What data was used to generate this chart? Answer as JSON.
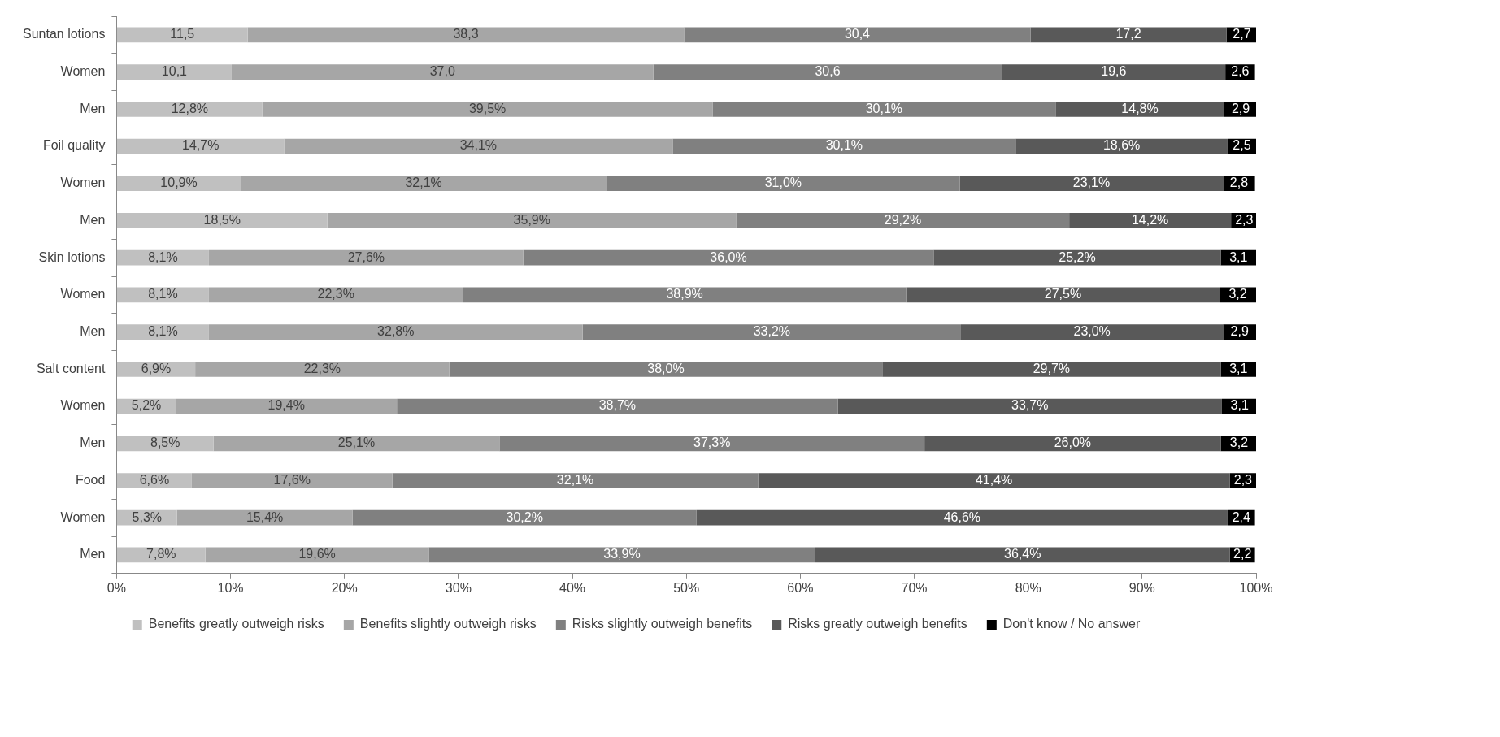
{
  "chart_data": {
    "type": "bar",
    "orientation": "horizontal",
    "stacked": true,
    "legend": "bottom",
    "grid": false,
    "categories": [
      "Suntan lotions",
      "Women",
      "Men",
      "Foil quality",
      "Women",
      "Men",
      "Skin lotions",
      "Women",
      "Men",
      "Salt content",
      "Women",
      "Men",
      "Food",
      "Women",
      "Men"
    ],
    "xlim": [
      0,
      100
    ],
    "xticks": [
      {
        "value": 0,
        "label": "0%"
      },
      {
        "value": 10,
        "label": "10%"
      },
      {
        "value": 20,
        "label": "20%"
      },
      {
        "value": 30,
        "label": "30%"
      },
      {
        "value": 40,
        "label": "40%"
      },
      {
        "value": 50,
        "label": "50%"
      },
      {
        "value": 60,
        "label": "60%"
      },
      {
        "value": 70,
        "label": "70%"
      },
      {
        "value": 80,
        "label": "80%"
      },
      {
        "value": 90,
        "label": "90%"
      },
      {
        "value": 100,
        "label": "100%"
      }
    ],
    "series": [
      {
        "name": "Benefits greatly outweigh risks",
        "color": "#c0c0c0",
        "values": [
          11.5,
          10.1,
          12.8,
          14.7,
          10.9,
          18.5,
          8.1,
          8.1,
          8.1,
          6.9,
          5.2,
          8.5,
          6.6,
          5.3,
          7.8
        ],
        "value_labels": [
          "11,5",
          "10,1",
          "12,8%",
          "14,7%",
          "10,9%",
          "18,5%",
          "8,1%",
          "8,1%",
          "8,1%",
          "6,9%",
          "5,2%",
          "8,5%",
          "6,6%",
          "5,3%",
          "7,8%"
        ]
      },
      {
        "name": "Benefits slightly outweigh risks",
        "color": "#a6a6a6",
        "values": [
          38.3,
          37.0,
          39.5,
          34.1,
          32.1,
          35.9,
          27.6,
          22.3,
          32.8,
          22.3,
          19.4,
          25.1,
          17.6,
          15.4,
          19.6
        ],
        "value_labels": [
          "38,3",
          "37,0",
          "39,5%",
          "34,1%",
          "32,1%",
          "35,9%",
          "27,6%",
          "22,3%",
          "32,8%",
          "22,3%",
          "19,4%",
          "25,1%",
          "17,6%",
          "15,4%",
          "19,6%"
        ]
      },
      {
        "name": "Risks slightly outweigh benefits",
        "color": "#808080",
        "values": [
          30.4,
          30.6,
          30.1,
          30.1,
          31.0,
          29.2,
          36.0,
          38.9,
          33.2,
          38.0,
          38.7,
          37.3,
          32.1,
          30.2,
          33.9
        ],
        "value_labels": [
          "30,4",
          "30,6",
          "30,1%",
          "30,1%",
          "31,0%",
          "29,2%",
          "36,0%",
          "38,9%",
          "33,2%",
          "38,0%",
          "38,7%",
          "37,3%",
          "32,1%",
          "30,2%",
          "33,9%"
        ]
      },
      {
        "name": "Risks greatly outweigh benefits",
        "color": "#595959",
        "values": [
          17.2,
          19.6,
          14.8,
          18.6,
          23.1,
          14.2,
          25.2,
          27.5,
          23.0,
          29.7,
          33.7,
          26.0,
          41.4,
          46.6,
          36.4
        ],
        "value_labels": [
          "17,2",
          "19,6",
          "14,8%",
          "18,6%",
          "23,1%",
          "14,2%",
          "25,2%",
          "27,5%",
          "23,0%",
          "29,7%",
          "33,7%",
          "26,0%",
          "41,4%",
          "46,6%",
          "36,4%"
        ]
      },
      {
        "name": "Don't know / No answer",
        "color": "#000000",
        "values": [
          2.7,
          2.6,
          2.9,
          2.5,
          2.8,
          2.3,
          3.1,
          3.2,
          2.9,
          3.1,
          3.1,
          3.2,
          2.3,
          2.4,
          2.2
        ],
        "value_labels": [
          "2,7",
          "2,6",
          "2,9",
          "2,5",
          "2,8",
          "2,3",
          "3,1",
          "3,2",
          "2,9",
          "3,1",
          "3,1",
          "3,2",
          "2,3",
          "2,4",
          "2,2"
        ]
      }
    ]
  }
}
